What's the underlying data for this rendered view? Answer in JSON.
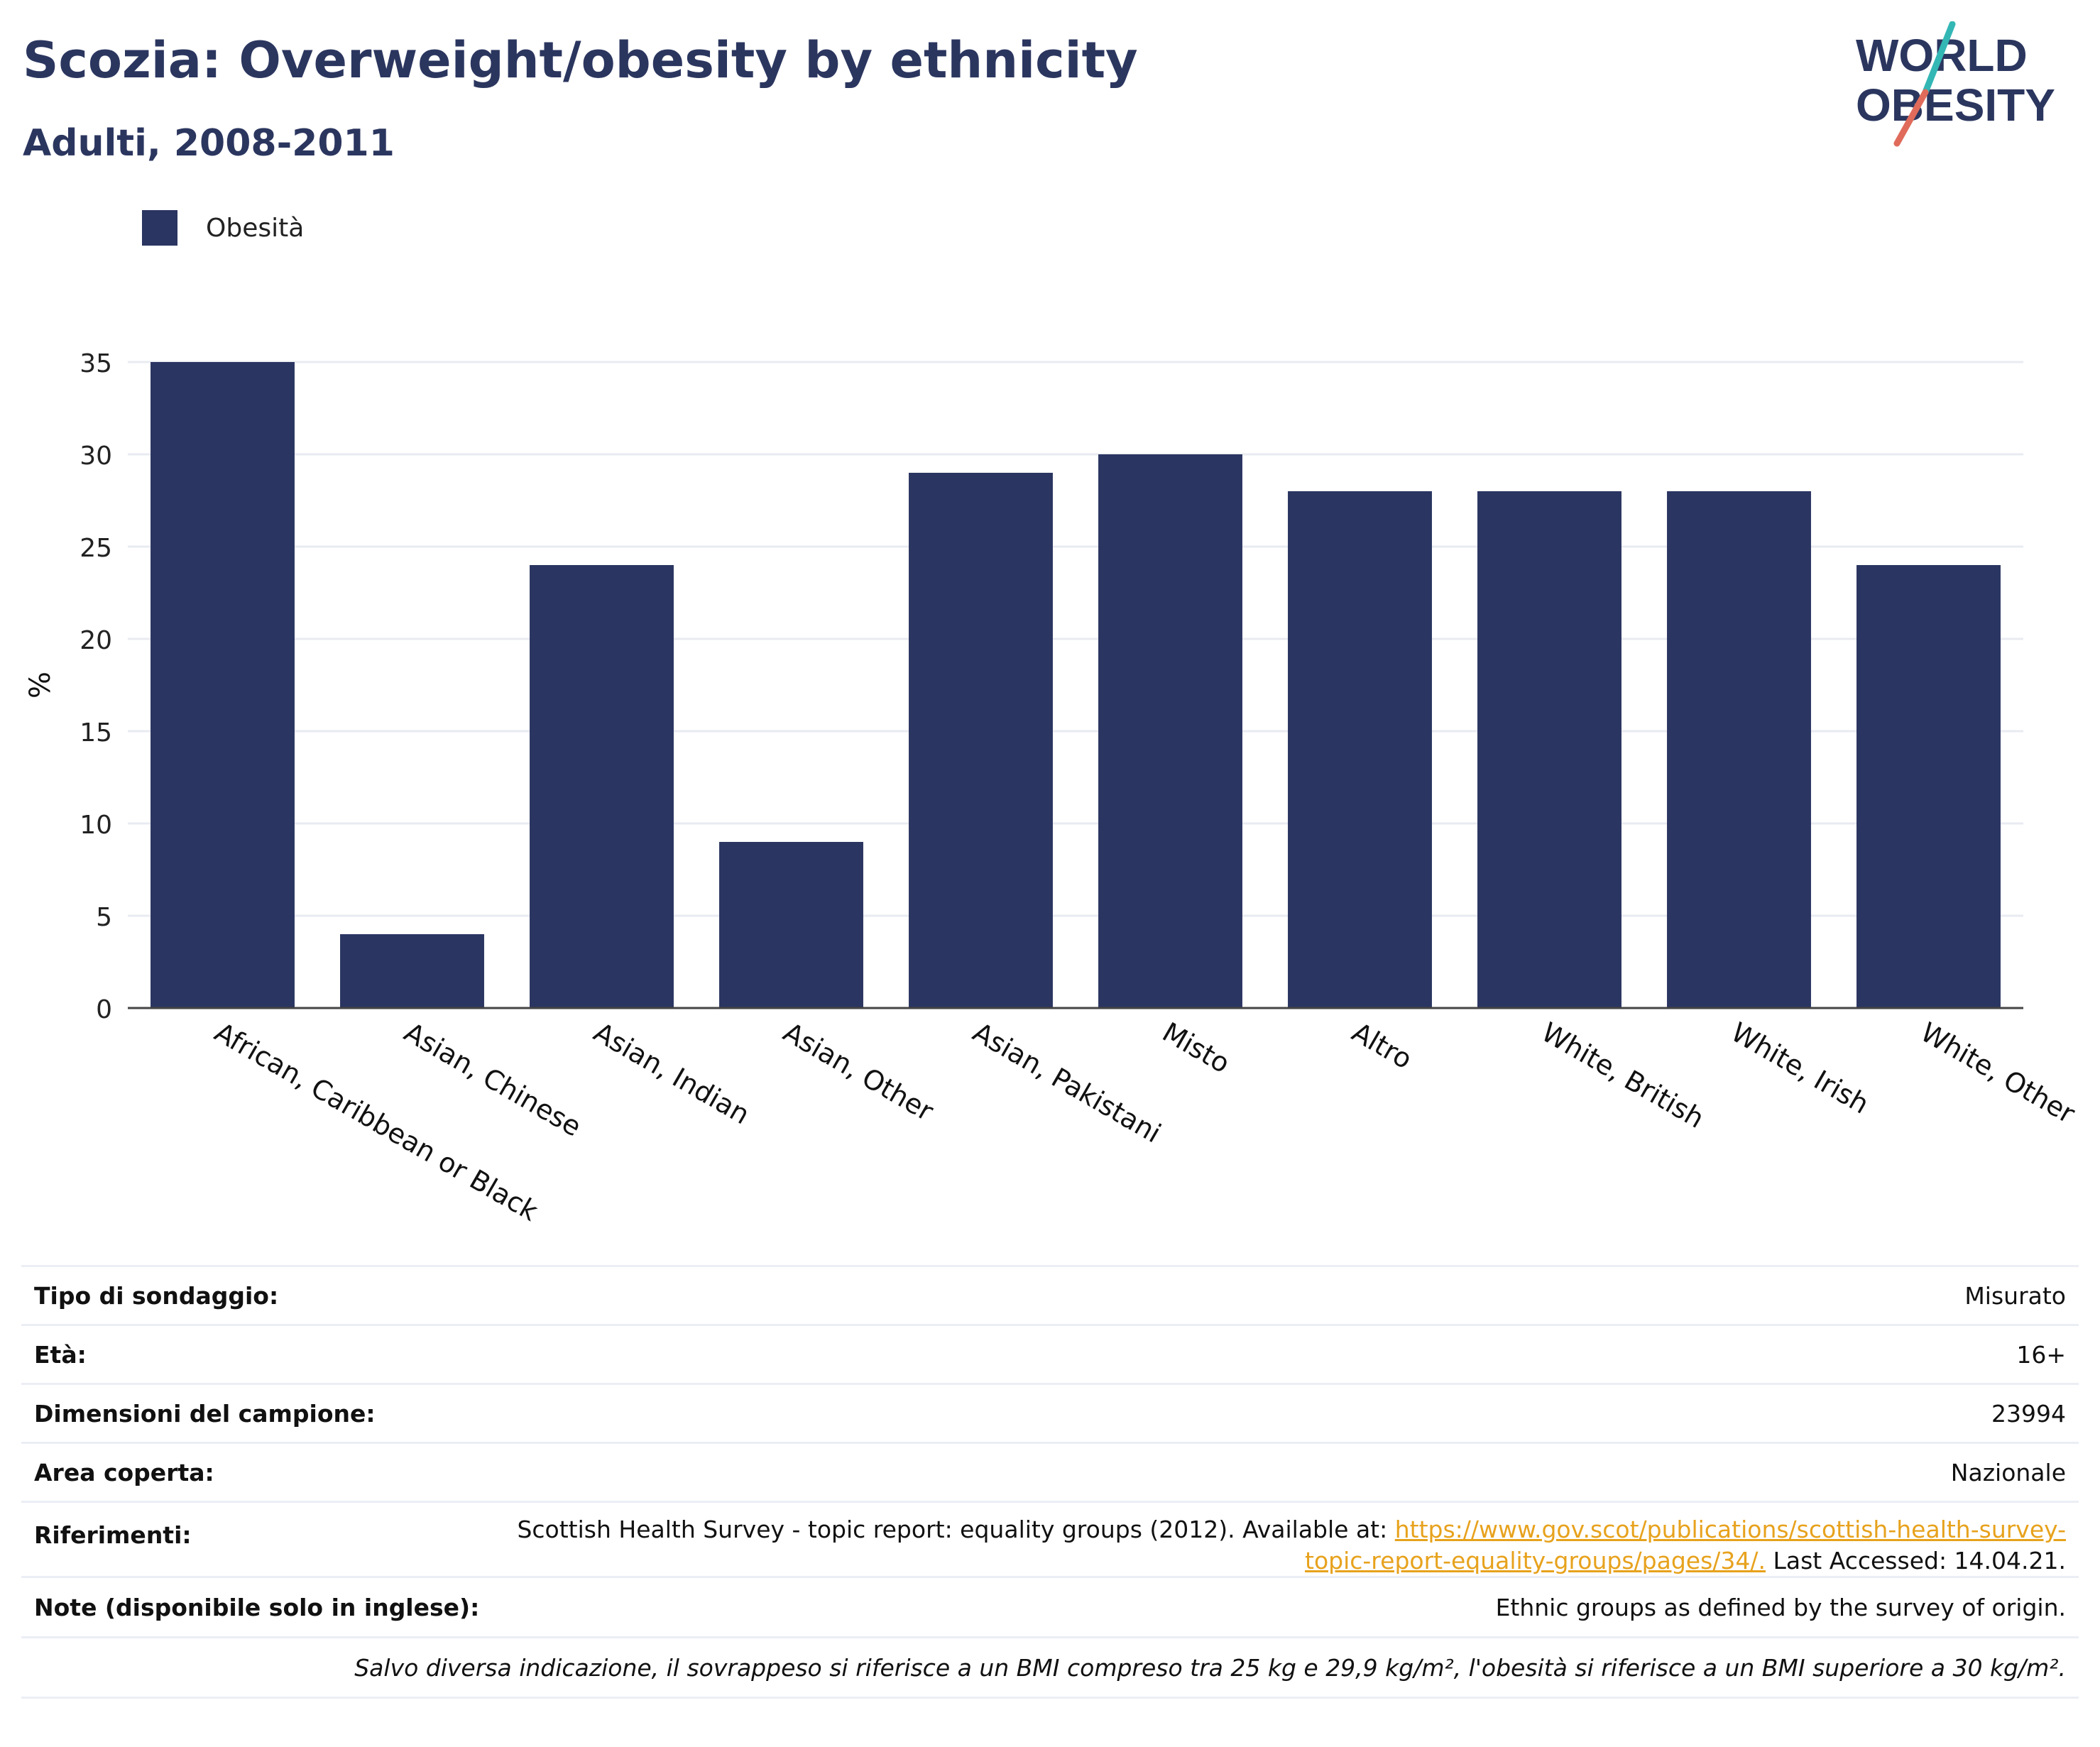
{
  "header": {
    "title": "Scozia: Overweight/obesity by ethnicity",
    "subtitle": "Adulti, 2008-2011"
  },
  "logo": {
    "line1": "WORLD",
    "line2": "OBESITY",
    "colors": {
      "text": "#2b365f",
      "slash_teal": "#33b7b5",
      "slash_coral": "#e06b5b"
    }
  },
  "colors": {
    "bar": "#2a3561",
    "title": "#2b365f",
    "link": "#e7a21d",
    "grid": "#e9ebf2",
    "baseline": "#444444"
  },
  "chart_data": {
    "type": "bar",
    "title": "Scozia: Overweight/obesity by ethnicity",
    "subtitle": "Adulti, 2008-2011",
    "xlabel": "",
    "ylabel": "%",
    "ylim": [
      0,
      35
    ],
    "yticks": [
      0,
      5,
      10,
      15,
      20,
      25,
      30,
      35
    ],
    "grid": true,
    "legend_position": "top-left",
    "categories": [
      "African, Caribbean or Black",
      "Asian, Chinese",
      "Asian, Indian",
      "Asian, Other",
      "Asian, Pakistani",
      "Misto",
      "Altro",
      "White, British",
      "White, Irish",
      "White, Other"
    ],
    "series": [
      {
        "name": "Obesità",
        "color": "#2a3561",
        "values": [
          35,
          4,
          24,
          9,
          29,
          30,
          28,
          28,
          28,
          24
        ]
      }
    ]
  },
  "table": {
    "survey_type": {
      "label": "Tipo di sondaggio:",
      "value": "Misurato"
    },
    "age": {
      "label": "Età:",
      "value": "16+"
    },
    "sample_size": {
      "label": "Dimensioni del campione:",
      "value": "23994"
    },
    "area": {
      "label": "Area coperta:",
      "value": "Nazionale"
    },
    "references": {
      "label": "Riferimenti:",
      "text_before": "Scottish Health Survey - topic report: equality groups (2012). Available at: ",
      "link_line1": "https://www.gov.scot/publications/scottish-health-survey-",
      "link_line2": "topic-report-equality-groups/pages/34/.",
      "text_after": " Last Accessed: 14.04.21."
    },
    "notes": {
      "label": "Note (disponibile solo in inglese):",
      "value": "Ethnic groups as defined by the survey of origin."
    },
    "footnote": "Salvo diversa indicazione, il sovrappeso si riferisce a un BMI compreso tra 25 kg e 29,9 kg/m², l'obesità si riferisce a un BMI superiore a 30 kg/m²."
  }
}
